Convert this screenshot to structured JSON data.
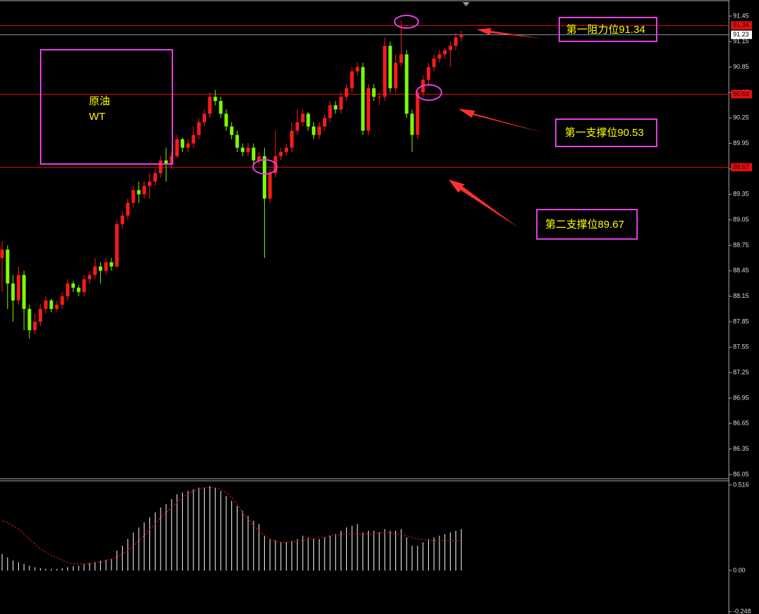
{
  "chart_data": [
    {
      "type": "candlestick",
      "up_color": "#ff1a1a",
      "down_color": "#7cfc00",
      "ylim": [
        86.0,
        91.64
      ],
      "yticks": [
        91.45,
        91.15,
        90.85,
        90.55,
        90.25,
        89.95,
        89.65,
        89.35,
        89.05,
        88.75,
        88.45,
        88.15,
        87.85,
        87.55,
        87.25,
        86.95,
        86.65,
        86.35,
        86.05
      ],
      "candles": [
        [
          88.6,
          88.8,
          88.2,
          88.7
        ],
        [
          88.7,
          88.75,
          88.0,
          88.3
        ],
        [
          88.3,
          88.4,
          87.85,
          88.1
        ],
        [
          88.1,
          88.5,
          88.05,
          88.4
        ],
        [
          88.4,
          88.45,
          87.75,
          88.0
        ],
        [
          88.0,
          88.05,
          87.65,
          87.75
        ],
        [
          87.75,
          87.95,
          87.7,
          87.85
        ],
        [
          87.85,
          88.06,
          87.8,
          88.0
        ],
        [
          88.0,
          88.15,
          87.95,
          88.1
        ],
        [
          88.1,
          88.12,
          87.96,
          88.0
        ],
        [
          88.0,
          88.1,
          87.97,
          88.05
        ],
        [
          88.05,
          88.2,
          88.0,
          88.15
        ],
        [
          88.15,
          88.35,
          88.1,
          88.3
        ],
        [
          88.3,
          88.33,
          88.2,
          88.25
        ],
        [
          88.25,
          88.28,
          88.15,
          88.2
        ],
        [
          88.2,
          88.4,
          88.15,
          88.35
        ],
        [
          88.35,
          88.45,
          88.3,
          88.4
        ],
        [
          88.4,
          88.6,
          88.35,
          88.5
        ],
        [
          88.5,
          88.55,
          88.3,
          88.45
        ],
        [
          88.45,
          88.6,
          88.4,
          88.55
        ],
        [
          88.55,
          88.6,
          88.45,
          88.5
        ],
        [
          88.5,
          89.05,
          88.48,
          89.0
        ],
        [
          89.0,
          89.15,
          88.95,
          89.1
        ],
        [
          89.1,
          89.3,
          89.05,
          89.25
        ],
        [
          89.25,
          89.45,
          89.2,
          89.4
        ],
        [
          89.4,
          89.5,
          89.25,
          89.35
        ],
        [
          89.35,
          89.5,
          89.3,
          89.45
        ],
        [
          89.45,
          89.6,
          89.3,
          89.5
        ],
        [
          89.5,
          89.65,
          89.45,
          89.6
        ],
        [
          89.6,
          89.8,
          89.55,
          89.75
        ],
        [
          89.75,
          89.9,
          89.5,
          89.7
        ],
        [
          89.7,
          89.85,
          89.65,
          89.8
        ],
        [
          89.8,
          90.05,
          89.78,
          90.0
        ],
        [
          90.0,
          90.02,
          89.85,
          89.9
        ],
        [
          89.9,
          90.0,
          89.85,
          89.95
        ],
        [
          89.95,
          90.15,
          89.9,
          90.05
        ],
        [
          90.05,
          90.25,
          90.0,
          90.2
        ],
        [
          90.2,
          90.35,
          90.15,
          90.3
        ],
        [
          90.3,
          90.55,
          90.25,
          90.5
        ],
        [
          90.5,
          90.58,
          90.4,
          90.45
        ],
        [
          90.45,
          90.5,
          90.25,
          90.3
        ],
        [
          90.3,
          90.35,
          90.1,
          90.15
        ],
        [
          90.15,
          90.2,
          90.0,
          90.05
        ],
        [
          90.05,
          90.1,
          89.85,
          89.9
        ],
        [
          89.9,
          89.95,
          89.8,
          89.85
        ],
        [
          89.85,
          89.95,
          89.8,
          89.9
        ],
        [
          89.9,
          89.95,
          89.7,
          89.75
        ],
        [
          89.75,
          89.85,
          89.7,
          89.8
        ],
        [
          89.8,
          89.9,
          88.6,
          89.3
        ],
        [
          89.3,
          89.65,
          89.25,
          89.6
        ],
        [
          89.6,
          90.1,
          89.55,
          89.8
        ],
        [
          89.8,
          89.9,
          89.75,
          89.85
        ],
        [
          89.85,
          89.95,
          89.8,
          89.9
        ],
        [
          89.9,
          90.2,
          89.85,
          90.1
        ],
        [
          90.1,
          90.35,
          90.05,
          90.2
        ],
        [
          90.2,
          90.35,
          90.15,
          90.3
        ],
        [
          90.3,
          90.32,
          90.1,
          90.15
        ],
        [
          90.15,
          90.2,
          90.0,
          90.05
        ],
        [
          90.05,
          90.2,
          90.0,
          90.15
        ],
        [
          90.15,
          90.3,
          90.1,
          90.25
        ],
        [
          90.25,
          90.45,
          90.2,
          90.4
        ],
        [
          90.4,
          90.45,
          90.3,
          90.35
        ],
        [
          90.35,
          90.55,
          90.3,
          90.5
        ],
        [
          90.5,
          90.65,
          90.45,
          90.6
        ],
        [
          90.6,
          90.85,
          90.55,
          90.8
        ],
        [
          90.8,
          90.9,
          90.75,
          90.85
        ],
        [
          90.85,
          90.9,
          90.05,
          90.1
        ],
        [
          90.1,
          90.65,
          90.05,
          90.6
        ],
        [
          90.6,
          90.65,
          90.45,
          90.5
        ],
        [
          90.5,
          90.55,
          90.4,
          90.5
        ],
        [
          90.5,
          91.2,
          90.45,
          91.1
        ],
        [
          91.1,
          91.15,
          90.55,
          90.6
        ],
        [
          90.6,
          91.0,
          90.55,
          90.9
        ],
        [
          90.9,
          91.4,
          90.85,
          91.0
        ],
        [
          91.0,
          91.05,
          90.25,
          90.3
        ],
        [
          90.3,
          90.35,
          89.85,
          90.05
        ],
        [
          90.05,
          90.6,
          90.0,
          90.55
        ],
        [
          90.55,
          90.75,
          90.5,
          90.7
        ],
        [
          90.7,
          90.9,
          90.65,
          90.85
        ],
        [
          90.85,
          91.0,
          90.8,
          90.95
        ],
        [
          90.95,
          91.05,
          90.9,
          91.0
        ],
        [
          91.0,
          91.08,
          90.95,
          91.05
        ],
        [
          91.05,
          91.15,
          90.85,
          91.1
        ],
        [
          91.1,
          91.25,
          91.05,
          91.2
        ],
        [
          91.2,
          91.28,
          91.15,
          91.23
        ]
      ],
      "current_price": 91.23,
      "levels": [
        {
          "value": 91.34,
          "color": "#e01010"
        },
        {
          "value": 90.53,
          "color": "#e01010"
        },
        {
          "value": 89.67,
          "color": "#e01010"
        }
      ],
      "annotations": [
        "原油",
        "WT",
        "第一阻力位91.34",
        "第一支撑位90.53",
        "第二支撑位89.67"
      ]
    },
    {
      "type": "histogram-line",
      "ylim": [
        -0.262,
        0.541
      ],
      "yticks": [
        0.516,
        {
          "value": 0,
          "label": "0.00"
        },
        -0.248
      ],
      "series": [
        {
          "color": "#ffffff",
          "values": [
            0.1,
            0.08,
            0.06,
            0.05,
            0.04,
            0.03,
            0.02,
            0.015,
            0.01,
            0.01,
            0.01,
            0.015,
            0.02,
            0.025,
            0.03,
            0.04,
            0.045,
            0.05,
            0.06,
            0.065,
            0.07,
            0.12,
            0.15,
            0.19,
            0.23,
            0.26,
            0.29,
            0.32,
            0.35,
            0.38,
            0.4,
            0.43,
            0.46,
            0.47,
            0.48,
            0.49,
            0.5,
            0.5,
            0.51,
            0.5,
            0.48,
            0.45,
            0.42,
            0.39,
            0.36,
            0.33,
            0.3,
            0.28,
            0.21,
            0.19,
            0.18,
            0.17,
            0.17,
            0.18,
            0.19,
            0.21,
            0.2,
            0.19,
            0.19,
            0.2,
            0.21,
            0.22,
            0.24,
            0.26,
            0.27,
            0.28,
            0.23,
            0.24,
            0.24,
            0.23,
            0.25,
            0.24,
            0.24,
            0.25,
            0.2,
            0.15,
            0.15,
            0.17,
            0.19,
            0.2,
            0.21,
            0.22,
            0.23,
            0.24,
            0.25
          ]
        },
        {
          "color": "#e01010",
          "values": [
            0.3,
            0.29,
            0.27,
            0.25,
            0.22,
            0.19,
            0.16,
            0.13,
            0.11,
            0.09,
            0.08,
            0.06,
            0.05,
            0.04,
            0.04,
            0.04,
            0.04,
            0.05,
            0.05,
            0.06,
            0.07,
            0.08,
            0.1,
            0.12,
            0.15,
            0.18,
            0.21,
            0.25,
            0.28,
            0.32,
            0.35,
            0.38,
            0.41,
            0.44,
            0.46,
            0.48,
            0.49,
            0.5,
            0.5,
            0.5,
            0.49,
            0.47,
            0.44,
            0.4,
            0.35,
            0.31,
            0.27,
            0.24,
            0.21,
            0.19,
            0.18,
            0.17,
            0.17,
            0.17,
            0.18,
            0.18,
            0.19,
            0.19,
            0.2,
            0.2,
            0.21,
            0.21,
            0.22,
            0.22,
            0.22,
            0.22,
            0.22,
            0.22,
            0.22,
            0.23,
            0.23,
            0.23,
            0.22,
            0.22,
            0.21,
            0.2,
            0.19,
            0.19,
            0.18,
            0.18,
            0.18,
            0.18,
            0.18,
            0.18,
            0.18
          ]
        }
      ]
    }
  ]
}
